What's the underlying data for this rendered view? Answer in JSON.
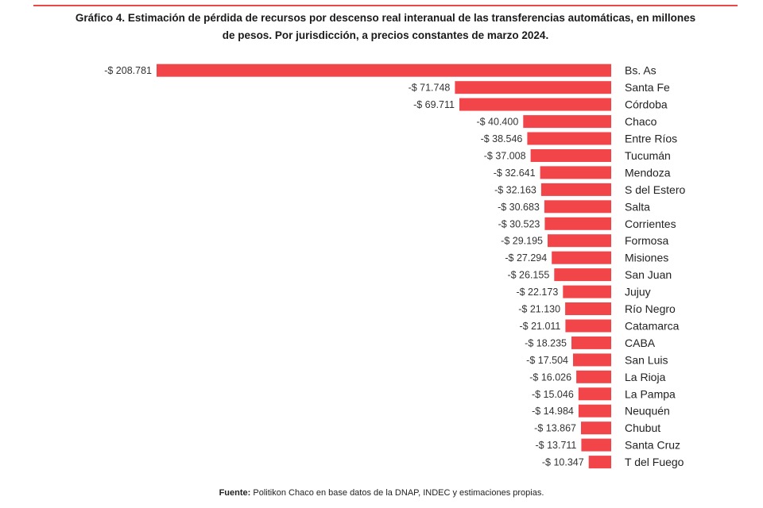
{
  "title_line1": "Gráfico 4. Estimación de pérdida de recursos por descenso real interanual de las transferencias automáticas, en millones",
  "title_line2": "de pesos. Por jurisdicción, a precios constantes de marzo 2024.",
  "source_label": "Fuente:",
  "source_text": "Politikon Chaco en base datos de la DNAP, INDEC y estimaciones propias.",
  "colors": {
    "bar": "#f2454a",
    "accent": "#e8484a"
  },
  "chart_data": {
    "type": "bar",
    "orientation": "horizontal",
    "categories": [
      "Bs. As",
      "Santa Fe",
      "Córdoba",
      "Chaco",
      "Entre Ríos",
      "Tucumán",
      "Mendoza",
      "S del Estero",
      "Salta",
      "Corrientes",
      "Formosa",
      "Misiones",
      "San Juan",
      "Jujuy",
      "Río Negro",
      "Catamarca",
      "CABA",
      "San Luis",
      "La Rioja",
      "La Pampa",
      "Neuquén",
      "Chubut",
      "Santa Cruz",
      "T del Fuego"
    ],
    "values": [
      -208781,
      -71748,
      -69711,
      -40400,
      -38546,
      -37008,
      -32641,
      -32163,
      -30683,
      -30523,
      -29195,
      -27294,
      -26155,
      -22173,
      -21130,
      -21011,
      -18235,
      -17504,
      -16026,
      -15046,
      -14984,
      -13867,
      -13711,
      -10347
    ],
    "value_labels": [
      "-$ 208.781",
      "-$ 71.748",
      "-$ 69.711",
      "-$ 40.400",
      "-$ 38.546",
      "-$ 37.008",
      "-$ 32.641",
      "-$ 32.163",
      "-$ 30.683",
      "-$ 30.523",
      "-$ 29.195",
      "-$ 27.294",
      "-$ 26.155",
      "-$ 22.173",
      "-$ 21.130",
      "-$ 21.011",
      "-$ 18.235",
      "-$ 17.504",
      "-$ 16.026",
      "-$ 15.046",
      "-$ 14.984",
      "-$ 13.867",
      "-$ 13.711",
      "-$ 10.347"
    ],
    "xlim": [
      -208781,
      0
    ],
    "grid": false,
    "legend": "none"
  }
}
